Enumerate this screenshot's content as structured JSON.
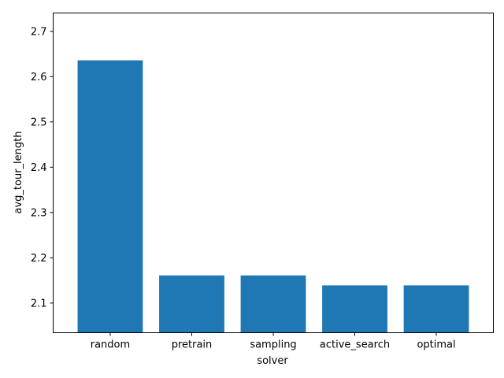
{
  "chart_data": {
    "type": "bar",
    "categories": [
      "random",
      "pretrain",
      "sampling",
      "active_search",
      "optimal"
    ],
    "values": [
      2.636,
      2.161,
      2.161,
      2.139,
      2.139
    ],
    "xlabel": "solver",
    "ylabel": "avg_tour_length",
    "ylim": [
      2.0345,
      2.7405
    ],
    "yticks": [
      2.1,
      2.2,
      2.3,
      2.4,
      2.5,
      2.6,
      2.7
    ],
    "ytick_labels": [
      "2.1",
      "2.2",
      "2.3",
      "2.4",
      "2.5",
      "2.6",
      "2.7"
    ],
    "bar_color": "#1f77b4",
    "grid": false,
    "legend": null
  }
}
